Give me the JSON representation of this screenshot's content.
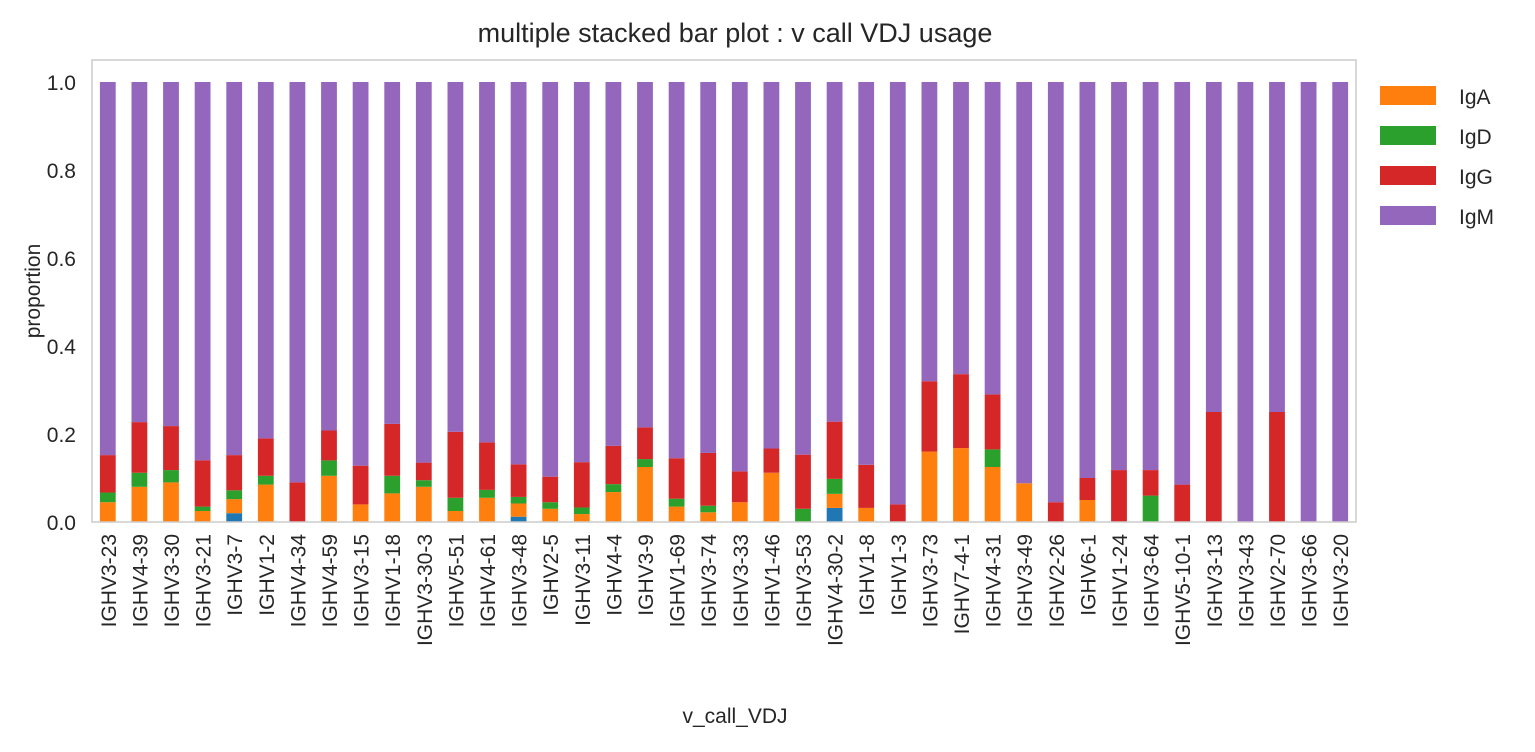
{
  "chart_data": {
    "type": "bar",
    "stacked": true,
    "title": "multiple stacked bar plot : v call VDJ usage",
    "xlabel": "v_call_VDJ",
    "ylabel": "proportion",
    "ylim": [
      0,
      1.05
    ],
    "yticks": [
      "0.0",
      "0.2",
      "0.4",
      "0.6",
      "0.8",
      "1.0"
    ],
    "grid": false,
    "legend_position": "outside-top-right",
    "categories": [
      "IGHV3-23",
      "IGHV4-39",
      "IGHV3-30",
      "IGHV3-21",
      "IGHV3-7",
      "IGHV1-2",
      "IGHV4-34",
      "IGHV4-59",
      "IGHV3-15",
      "IGHV1-18",
      "IGHV3-30-3",
      "IGHV5-51",
      "IGHV4-61",
      "IGHV3-48",
      "IGHV2-5",
      "IGHV3-11",
      "IGHV4-4",
      "IGHV3-9",
      "IGHV1-69",
      "IGHV3-74",
      "IGHV3-33",
      "IGHV1-46",
      "IGHV3-53",
      "IGHV4-30-2",
      "IGHV1-8",
      "IGHV1-3",
      "IGHV3-73",
      "IGHV7-4-1",
      "IGHV4-31",
      "IGHV3-49",
      "IGHV2-26",
      "IGHV6-1",
      "IGHV1-24",
      "IGHV3-64",
      "IGHV5-10-1",
      "IGHV3-13",
      "IGHV3-43",
      "IGHV2-70",
      "IGHV3-66",
      "IGHV3-20"
    ],
    "series": [
      {
        "name": "",
        "color": "#1f77b4",
        "values": [
          0,
          0,
          0,
          0,
          0.02,
          0,
          0,
          0,
          0,
          0,
          0,
          0,
          0,
          0.012,
          0,
          0,
          0,
          0,
          0,
          0,
          0,
          0,
          0,
          0.032,
          0,
          0,
          0,
          0,
          0,
          0,
          0,
          0,
          0,
          0,
          0,
          0,
          0,
          0,
          0,
          0
        ]
      },
      {
        "name": "IgA",
        "color": "#ff7f0e",
        "values": [
          0.045,
          0.08,
          0.09,
          0.025,
          0.032,
          0.085,
          0,
          0.105,
          0.04,
          0.065,
          0.08,
          0.025,
          0.055,
          0.03,
          0.03,
          0.018,
          0.068,
          0.125,
          0.035,
          0.022,
          0.045,
          0.112,
          0,
          0.032,
          0.032,
          0,
          0.16,
          0.168,
          0.125,
          0.088,
          0,
          0.05,
          0,
          0,
          0,
          0,
          0,
          0,
          0,
          0
        ]
      },
      {
        "name": "IgD",
        "color": "#2ca02c",
        "values": [
          0.022,
          0.032,
          0.028,
          0.01,
          0.02,
          0.02,
          0,
          0.035,
          0,
          0.04,
          0.015,
          0.03,
          0.018,
          0.015,
          0.015,
          0.015,
          0.018,
          0.018,
          0.018,
          0.015,
          0,
          0,
          0.03,
          0.034,
          0,
          0,
          0,
          0,
          0.04,
          0,
          0,
          0,
          0,
          0.06,
          0,
          0,
          0,
          0,
          0,
          0
        ]
      },
      {
        "name": "IgG",
        "color": "#d62728",
        "values": [
          0.085,
          0.115,
          0.1,
          0.105,
          0.08,
          0.085,
          0.09,
          0.068,
          0.088,
          0.118,
          0.04,
          0.15,
          0.108,
          0.074,
          0.058,
          0.103,
          0.087,
          0.072,
          0.092,
          0.12,
          0.07,
          0.055,
          0.123,
          0.13,
          0.098,
          0.04,
          0.16,
          0.168,
          0.125,
          0,
          0.045,
          0.05,
          0.118,
          0.058,
          0.085,
          0.25,
          0,
          0.25,
          0,
          0
        ]
      },
      {
        "name": "IgM",
        "color": "#9467bd",
        "values": [
          0.848,
          0.773,
          0.782,
          0.86,
          0.848,
          0.81,
          0.91,
          0.792,
          0.872,
          0.777,
          0.865,
          0.795,
          0.819,
          0.869,
          0.897,
          0.864,
          0.827,
          0.785,
          0.855,
          0.843,
          0.885,
          0.833,
          0.847,
          0.772,
          0.87,
          0.96,
          0.68,
          0.664,
          0.71,
          0.912,
          0.955,
          0.9,
          0.882,
          0.882,
          0.915,
          0.75,
          1.0,
          0.75,
          1.0,
          1.0
        ]
      }
    ]
  }
}
